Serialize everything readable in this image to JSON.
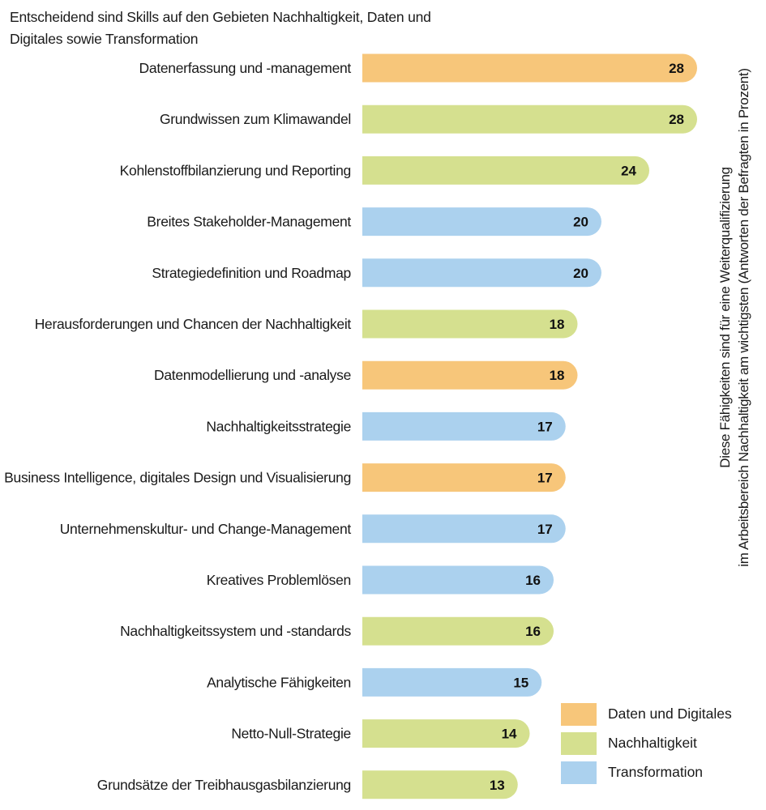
{
  "chart_data": {
    "type": "bar",
    "orientation": "horizontal",
    "title": "Entscheidend sind Skills auf den Gebieten Nachhaltigkeit, Daten und Digitales sowie Transformation",
    "side_label_lines": [
      "Diese Fähigkeiten sind für eine Weiterqualifizierung",
      "im Arbeitsbereich Nachhaltigkeit am wichtigsten (Antworten der Befragten in Prozent)"
    ],
    "categories": [
      "Datenerfassung und -management",
      "Grundwissen zum Klimawandel",
      "Kohlenstoffbilanzierung und Reporting",
      "Breites Stakeholder-Management",
      "Strategiedefinition und Roadmap",
      "Herausforderungen und Chancen der Nachhaltigkeit",
      "Datenmodellierung und -analyse",
      "Nachhaltigkeitsstrategie",
      "Business Intelligence, digitales Design und Visualisierung",
      "Unternehmenskultur- und Change-Management",
      "Kreatives Problemlösen",
      "Nachhaltigkeitssystem und -standards",
      "Analytische Fähigkeiten",
      "Netto-Null-Strategie",
      "Grundsätze der Treibhausgasbilanzierung"
    ],
    "values": [
      28,
      28,
      24,
      20,
      20,
      18,
      18,
      17,
      17,
      17,
      16,
      16,
      15,
      14,
      13
    ],
    "groups": [
      "daten",
      "nachhaltigkeit",
      "nachhaltigkeit",
      "transformation",
      "transformation",
      "nachhaltigkeit",
      "daten",
      "transformation",
      "daten",
      "transformation",
      "transformation",
      "nachhaltigkeit",
      "transformation",
      "nachhaltigkeit",
      "nachhaltigkeit"
    ],
    "legend": [
      {
        "key": "daten",
        "label": "Daten und Digitales",
        "color": "#F7C67A"
      },
      {
        "key": "nachhaltigkeit",
        "label": "Nachhaltigkeit",
        "color": "#D5E08F"
      },
      {
        "key": "transformation",
        "label": "Transformation",
        "color": "#ABD1EE"
      }
    ],
    "legend_position": "bottom-right",
    "xlim": [
      0,
      28
    ],
    "grid": false
  }
}
